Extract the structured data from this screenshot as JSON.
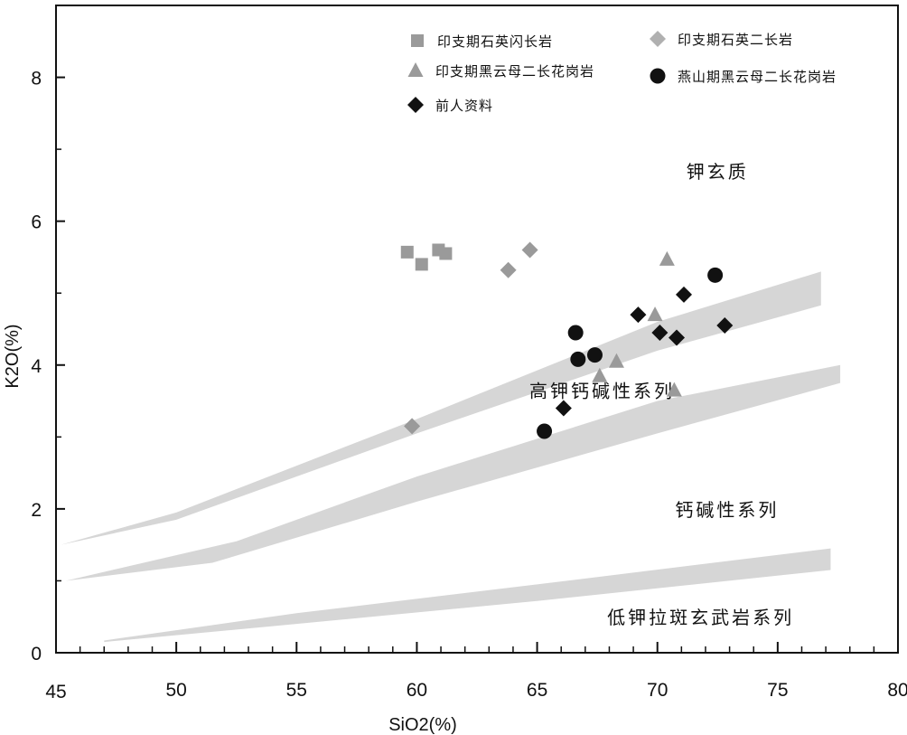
{
  "chart_data": {
    "type": "scatter",
    "xlabel": "SiO2(%)",
    "ylabel": "K2O(%)",
    "xlim": [
      45,
      80
    ],
    "ylim": [
      0,
      9
    ],
    "xticks": [
      45,
      50,
      55,
      60,
      65,
      70,
      75,
      80
    ],
    "yticks": [
      0,
      2,
      4,
      6,
      8
    ],
    "xtick_labels": [
      "45",
      "50",
      "55",
      "60",
      "65",
      "70",
      "75",
      "80"
    ],
    "ytick_labels": [
      "0",
      "2",
      "4",
      "6",
      "8"
    ],
    "grid": false,
    "legend_position": "top",
    "boundaries": [
      {
        "name": "shoshonite / high-K calc-alkaline",
        "upper": [
          [
            45.2,
            1.5
          ],
          [
            50,
            1.95
          ],
          [
            60,
            3.25
          ],
          [
            70,
            4.6
          ],
          [
            76.8,
            5.3
          ]
        ],
        "lower": [
          [
            45.2,
            1.5
          ],
          [
            50,
            1.85
          ],
          [
            60,
            3.05
          ],
          [
            70,
            4.2
          ],
          [
            76.8,
            4.83
          ]
        ]
      },
      {
        "name": "high-K calc-alkaline / calc-alkaline",
        "upper": [
          [
            45.4,
            1.0
          ],
          [
            52.5,
            1.55
          ],
          [
            60,
            2.45
          ],
          [
            70,
            3.5
          ],
          [
            77.6,
            4.0
          ]
        ],
        "lower": [
          [
            45.4,
            1.0
          ],
          [
            51.5,
            1.25
          ],
          [
            60,
            2.1
          ],
          [
            70,
            3.05
          ],
          [
            77.6,
            3.75
          ]
        ]
      },
      {
        "name": "calc-alkaline / low-K tholeiite",
        "upper": [
          [
            47,
            0.17
          ],
          [
            55,
            0.55
          ],
          [
            65,
            0.95
          ],
          [
            77.2,
            1.45
          ]
        ],
        "lower": [
          [
            47,
            0.15
          ],
          [
            55,
            0.4
          ],
          [
            65,
            0.72
          ],
          [
            77.2,
            1.15
          ]
        ]
      }
    ],
    "region_labels": [
      {
        "text": "钾玄质",
        "x": 72.5,
        "y": 6.6
      },
      {
        "text": "高钾钙碱性系列",
        "x": 67.7,
        "y": 3.55
      },
      {
        "text": "钙碱性系列",
        "x": 72.9,
        "y": 1.9
      },
      {
        "text": "低钾拉斑玄武岩系列",
        "x": 71.8,
        "y": 0.4
      }
    ],
    "series": [
      {
        "name": "印支期石英闪长岩",
        "marker": "square",
        "color": "#9a9a9a",
        "points": [
          [
            59.6,
            5.57
          ],
          [
            60.2,
            5.4
          ],
          [
            60.9,
            5.6
          ],
          [
            61.2,
            5.55
          ]
        ]
      },
      {
        "name": "印支期石英二长岩",
        "marker": "diamond",
        "color": "#9a9a9a",
        "points": [
          [
            59.8,
            3.15
          ],
          [
            63.8,
            5.32
          ],
          [
            64.7,
            5.6
          ]
        ]
      },
      {
        "name": "印支期黑云母二长花岗岩",
        "marker": "triangle",
        "color": "#9a9a9a",
        "points": [
          [
            67.6,
            3.85
          ],
          [
            68.3,
            4.05
          ],
          [
            69.9,
            4.7
          ],
          [
            70.4,
            5.47
          ],
          [
            70.7,
            3.65
          ]
        ]
      },
      {
        "name": "燕山期黑云母二长花岗岩",
        "marker": "circle",
        "color": "#111111",
        "points": [
          [
            65.3,
            3.08
          ],
          [
            66.6,
            4.45
          ],
          [
            66.7,
            4.08
          ],
          [
            67.4,
            4.14
          ],
          [
            72.4,
            5.25
          ]
        ]
      },
      {
        "name": "前人资料",
        "marker": "diamond",
        "color": "#111111",
        "points": [
          [
            66.1,
            3.4
          ],
          [
            69.2,
            4.7
          ],
          [
            70.1,
            4.45
          ],
          [
            70.8,
            4.38
          ],
          [
            71.1,
            4.98
          ],
          [
            72.8,
            4.55
          ]
        ]
      }
    ],
    "legend": [
      {
        "label": "印支期石英闪长岩",
        "marker": "square",
        "color": "#9a9a9a"
      },
      {
        "label": "印支期石英二长岩",
        "marker": "diamond",
        "color": "#b0b0b0"
      },
      {
        "label": "印支期黑云母二长花岗岩",
        "marker": "triangle",
        "color": "#9a9a9a"
      },
      {
        "label": "燕山期黑云母二长花岗岩",
        "marker": "circle",
        "color": "#111111"
      },
      {
        "label": "前人资料",
        "marker": "diamond",
        "color": "#111111"
      }
    ]
  }
}
